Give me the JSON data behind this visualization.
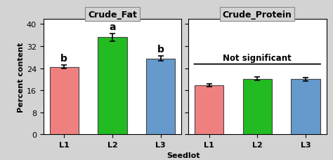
{
  "fat_values": [
    24.5,
    35.2,
    27.5
  ],
  "fat_errors": [
    0.6,
    1.3,
    0.9
  ],
  "fat_letters": [
    "b",
    "a",
    "b"
  ],
  "protein_values": [
    17.8,
    20.2,
    20.0
  ],
  "protein_errors": [
    0.5,
    0.7,
    0.6
  ],
  "categories": [
    "L1",
    "L2",
    "L3"
  ],
  "bar_colors": [
    "#F08080",
    "#22BB22",
    "#6699CC"
  ],
  "bar_edgecolor": "#444444",
  "ylabel": "Percent content",
  "xlabel": "Seedlot",
  "title_fat": "Crude_Fat",
  "title_protein": "Crude_Protein",
  "ylim": [
    0,
    42
  ],
  "yticks": [
    0,
    8,
    16,
    24,
    32,
    40
  ],
  "not_significant_text": "Not significant",
  "background_color": "#D3D3D3",
  "panel_color": "#FFFFFF",
  "title_bg_color": "#D3D3D3"
}
